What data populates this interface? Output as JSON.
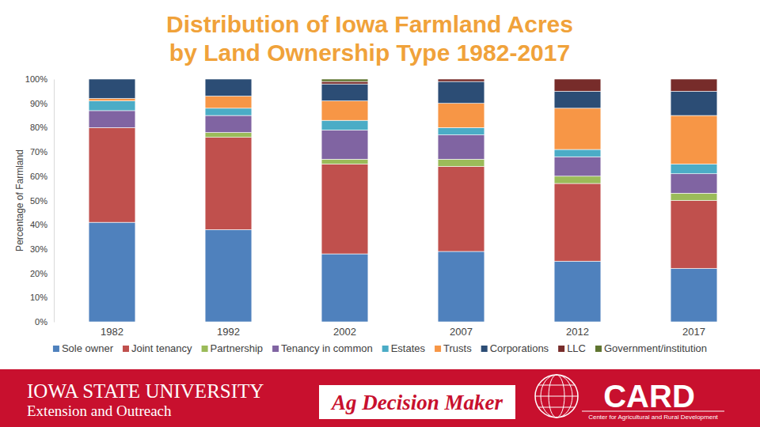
{
  "chart_data": {
    "type": "bar",
    "title": [
      "Distribution of Iowa Farmland Acres",
      "by Land Ownership Type 1982-2017"
    ],
    "y_label": "Percentage of Farmland",
    "categories": [
      "1982",
      "1992",
      "2002",
      "2007",
      "2012",
      "2017"
    ],
    "series": [
      {
        "name": "Sole owner",
        "color": "#4f81bd",
        "values": [
          41,
          38,
          28,
          29,
          25,
          22
        ]
      },
      {
        "name": "Joint tenancy",
        "color": "#c0504d",
        "values": [
          39,
          38,
          37,
          35,
          32,
          28
        ]
      },
      {
        "name": "Partnership",
        "color": "#9bbb59",
        "values": [
          0,
          2,
          2,
          3,
          3,
          3
        ]
      },
      {
        "name": "Tenancy in common",
        "color": "#8064a2",
        "values": [
          7,
          7,
          12,
          10,
          8,
          8
        ]
      },
      {
        "name": "Estates",
        "color": "#4bacc6",
        "values": [
          4,
          3,
          4,
          3,
          3,
          4
        ]
      },
      {
        "name": "Trusts",
        "color": "#f79646",
        "values": [
          1,
          5,
          8,
          10,
          17,
          20
        ]
      },
      {
        "name": "Corporations",
        "color": "#2c4d75",
        "values": [
          8,
          7,
          7,
          9,
          7,
          10
        ]
      },
      {
        "name": "LLC",
        "color": "#772c2a",
        "values": [
          0,
          0,
          1,
          1,
          5,
          5
        ]
      },
      {
        "name": "Government/institution",
        "color": "#5f7530",
        "values": [
          0,
          0,
          1,
          0,
          0,
          0
        ]
      }
    ],
    "ylim": [
      0,
      100
    ],
    "yticks": [
      {
        "value": 0,
        "label": "0%"
      },
      {
        "value": 10,
        "label": "10%"
      },
      {
        "value": 20,
        "label": "20%"
      },
      {
        "value": 30,
        "label": "30%"
      },
      {
        "value": 40,
        "label": "40%"
      },
      {
        "value": 50,
        "label": "50%"
      },
      {
        "value": 60,
        "label": "60%"
      },
      {
        "value": 70,
        "label": "70%"
      },
      {
        "value": 80,
        "label": "80%"
      },
      {
        "value": 90,
        "label": "90%"
      },
      {
        "value": 100,
        "label": "100%"
      }
    ],
    "stacked": true,
    "grid": false,
    "legend": "bottom"
  },
  "footer": {
    "left": [
      "IOWA STATE UNIVERSITY",
      "Extension and Outreach"
    ],
    "center": "Ag Decision Maker",
    "right": [
      "CARD",
      "Center for Agricultural and Rural Development"
    ]
  }
}
